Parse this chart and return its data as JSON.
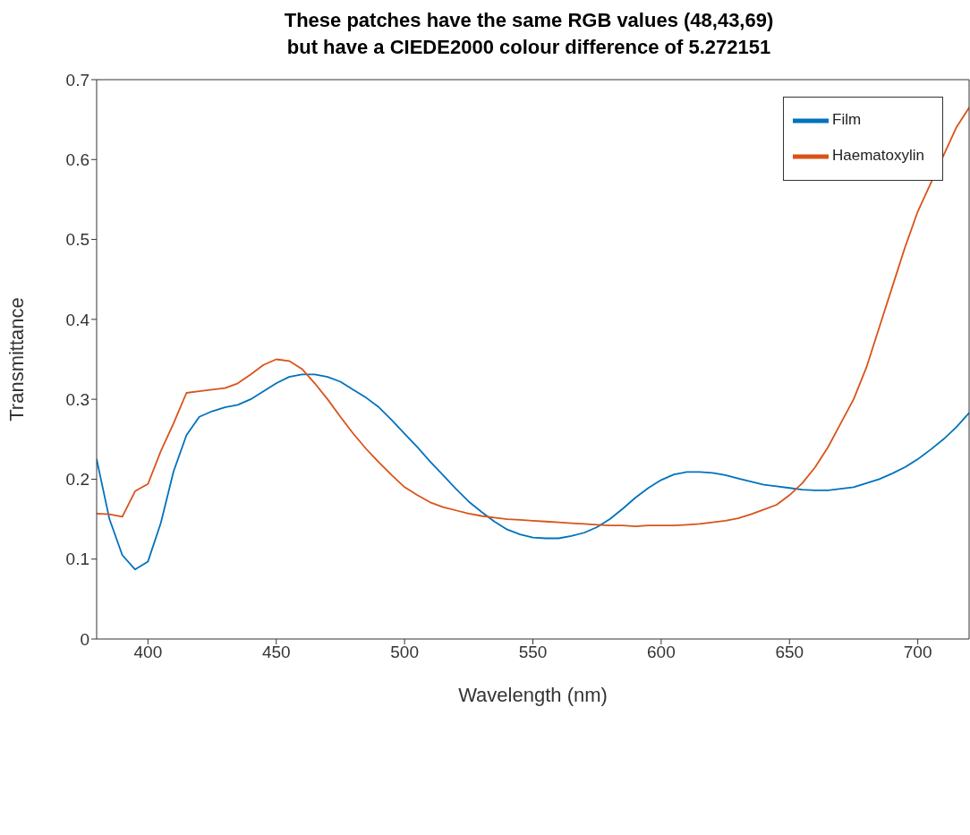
{
  "chart_data": {
    "type": "line",
    "title": "These patches have the same RGB values (48,43,69)\nbut have a CIEDE2000 colour difference of 5.272151",
    "xlabel": "Wavelength (nm)",
    "ylabel": "Transmittance",
    "x": [
      380,
      385,
      390,
      395,
      400,
      405,
      410,
      415,
      420,
      425,
      430,
      435,
      440,
      445,
      450,
      455,
      460,
      465,
      470,
      475,
      480,
      485,
      490,
      495,
      500,
      505,
      510,
      515,
      520,
      525,
      530,
      535,
      540,
      545,
      550,
      555,
      560,
      565,
      570,
      575,
      580,
      585,
      590,
      595,
      600,
      605,
      610,
      615,
      620,
      625,
      630,
      635,
      640,
      645,
      650,
      655,
      660,
      665,
      670,
      675,
      680,
      685,
      690,
      695,
      700,
      705,
      710,
      715,
      720
    ],
    "series": [
      {
        "name": "Film",
        "color": "#0072bd",
        "values": [
          0.225,
          0.15,
          0.105,
          0.087,
          0.097,
          0.145,
          0.21,
          0.255,
          0.278,
          0.285,
          0.29,
          0.293,
          0.3,
          0.31,
          0.32,
          0.328,
          0.331,
          0.331,
          0.328,
          0.322,
          0.312,
          0.302,
          0.29,
          0.274,
          0.257,
          0.24,
          0.222,
          0.205,
          0.188,
          0.172,
          0.159,
          0.147,
          0.137,
          0.131,
          0.127,
          0.126,
          0.126,
          0.129,
          0.133,
          0.14,
          0.15,
          0.163,
          0.177,
          0.189,
          0.199,
          0.206,
          0.209,
          0.209,
          0.208,
          0.205,
          0.201,
          0.197,
          0.193,
          0.191,
          0.189,
          0.187,
          0.186,
          0.186,
          0.188,
          0.19,
          0.195,
          0.2,
          0.207,
          0.215,
          0.225,
          0.237,
          0.25,
          0.265,
          0.283
        ]
      },
      {
        "name": "Haematoxylin",
        "color": "#d95319",
        "values": [
          0.157,
          0.156,
          0.153,
          0.185,
          0.194,
          0.235,
          0.27,
          0.308,
          0.31,
          0.312,
          0.314,
          0.32,
          0.331,
          0.343,
          0.35,
          0.348,
          0.338,
          0.32,
          0.3,
          0.278,
          0.257,
          0.238,
          0.221,
          0.205,
          0.19,
          0.18,
          0.171,
          0.165,
          0.161,
          0.157,
          0.154,
          0.152,
          0.15,
          0.149,
          0.148,
          0.147,
          0.146,
          0.145,
          0.144,
          0.143,
          0.142,
          0.142,
          0.141,
          0.142,
          0.142,
          0.142,
          0.143,
          0.144,
          0.146,
          0.148,
          0.151,
          0.156,
          0.162,
          0.168,
          0.18,
          0.195,
          0.215,
          0.24,
          0.27,
          0.3,
          0.34,
          0.39,
          0.44,
          0.49,
          0.535,
          0.57,
          0.605,
          0.64,
          0.665
        ]
      }
    ],
    "xlim": [
      380,
      720
    ],
    "xticks": [
      400,
      450,
      500,
      550,
      600,
      650,
      700
    ],
    "ylim": [
      0,
      0.7
    ],
    "yticks": [
      0,
      0.1,
      0.2,
      0.3,
      0.4,
      0.5,
      0.6,
      0.7
    ],
    "grid": false,
    "legend": "top right",
    "marker": "none",
    "line_style": "solid"
  }
}
